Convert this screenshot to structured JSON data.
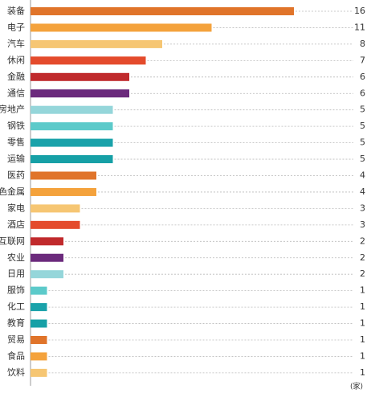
{
  "chart_data": {
    "type": "bar",
    "orientation": "horizontal",
    "categories": [
      "装备",
      "电子",
      "汽车",
      "休闲",
      "金融",
      "通信",
      "房地产",
      "钢铁",
      "零售",
      "运输",
      "医药",
      "色金属",
      "家电",
      "酒店",
      "互联网",
      "农业",
      "日用",
      "服饰",
      "化工",
      "教育",
      "贸易",
      "食品",
      "饮料"
    ],
    "values": [
      16,
      11,
      8,
      7,
      6,
      6,
      5,
      5,
      5,
      5,
      4,
      4,
      3,
      3,
      2,
      2,
      2,
      1,
      1,
      1,
      1,
      1,
      1
    ],
    "colors": [
      "#e0742a",
      "#f4a23c",
      "#f6c673",
      "#e44b2c",
      "#c02a2c",
      "#6b2a7c",
      "#95d6da",
      "#5ccaca",
      "#1aa2aa",
      "#16a0a6",
      "#e0742a",
      "#f4a23c",
      "#f6c673",
      "#e44b2c",
      "#c02a2c",
      "#6b2a7c",
      "#95d6da",
      "#5ccaca",
      "#1aa2aa",
      "#16a0a6",
      "#e0742a",
      "#f4a23c",
      "#f6c673"
    ],
    "unit": "(家)"
  }
}
